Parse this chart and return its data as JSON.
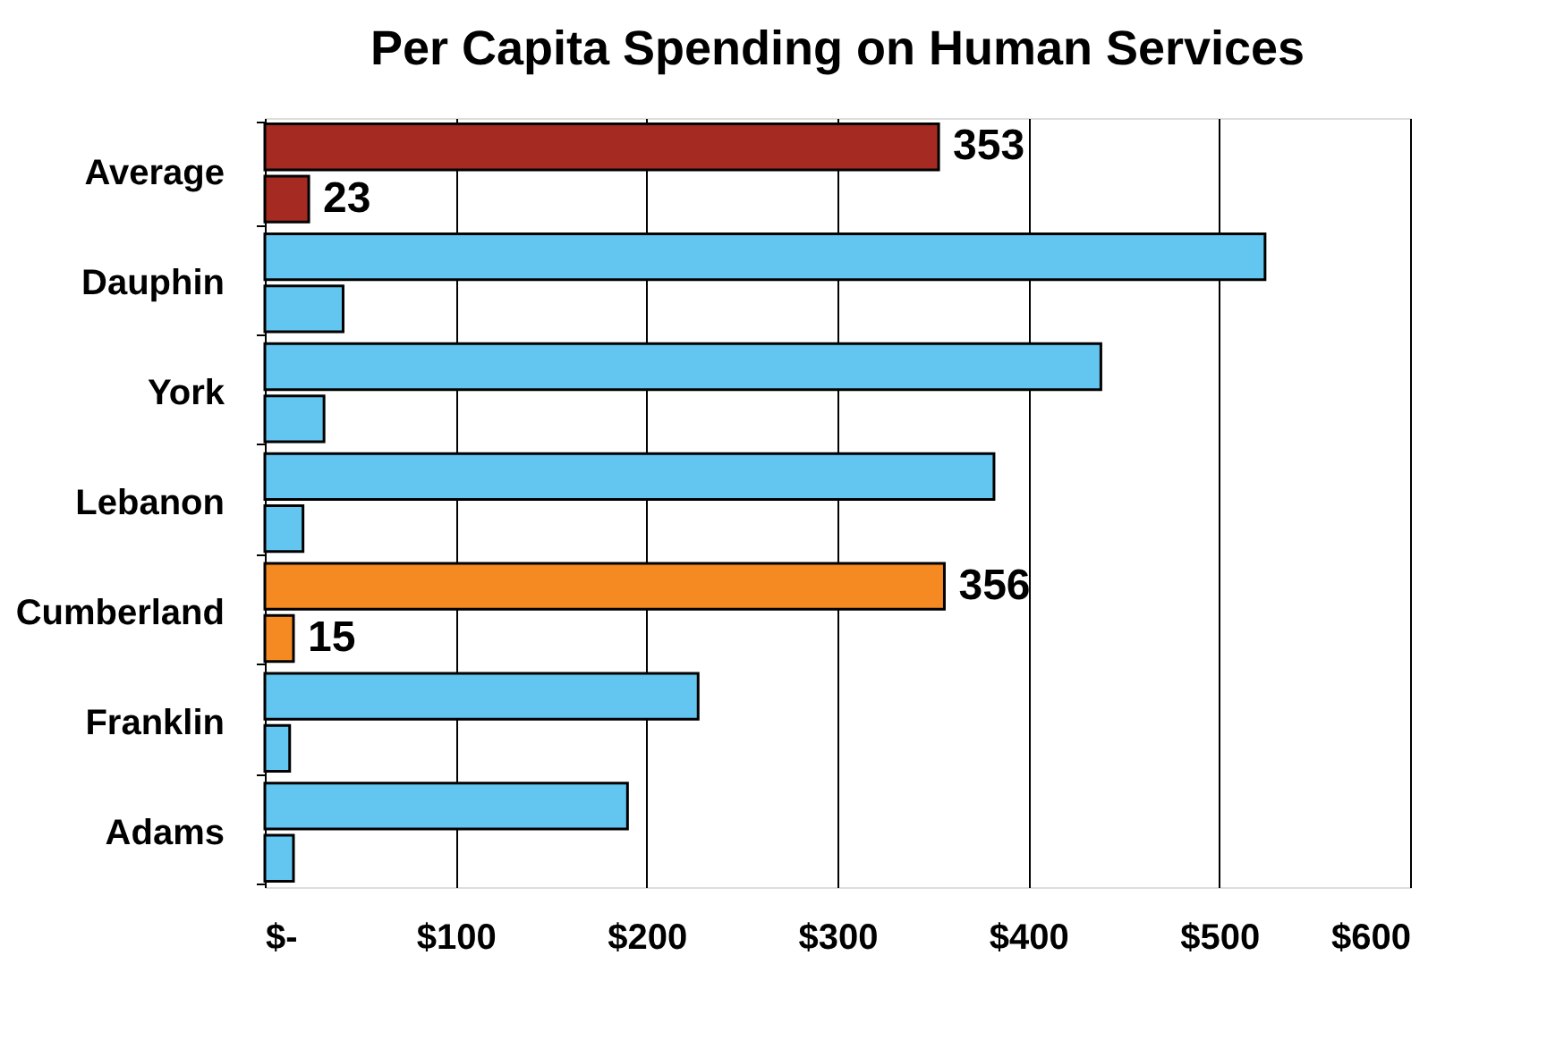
{
  "chart_data": {
    "type": "bar",
    "orientation": "horizontal",
    "title": "Per Capita Spending on Human Services",
    "categories": [
      "Average",
      "Dauphin",
      "York",
      "Lebanon",
      "Cumberland",
      "Franklin",
      "Adams"
    ],
    "series": [
      {
        "colors": [
          "#a52a22",
          "#63c6f0",
          "#63c6f0",
          "#63c6f0",
          "#f58a22",
          "#63c6f0",
          "#63c6f0"
        ],
        "values": [
          353,
          524,
          438,
          382,
          356,
          227,
          190
        ],
        "value_labels": [
          "353",
          null,
          null,
          null,
          "356",
          null,
          null
        ]
      },
      {
        "colors": [
          "#a52a22",
          "#63c6f0",
          "#63c6f0",
          "#63c6f0",
          "#f58a22",
          "#63c6f0",
          "#63c6f0"
        ],
        "values": [
          23,
          41,
          31,
          20,
          15,
          13,
          15
        ],
        "value_labels": [
          "23",
          null,
          null,
          null,
          "15",
          null,
          null
        ]
      }
    ],
    "xlim": [
      0,
      600
    ],
    "xticks": [
      {
        "value": 0,
        "label": "$-"
      },
      {
        "value": 100,
        "label": "$100"
      },
      {
        "value": 200,
        "label": "$200"
      },
      {
        "value": 300,
        "label": "$300"
      },
      {
        "value": 400,
        "label": "$400"
      },
      {
        "value": 500,
        "label": "$500"
      },
      {
        "value": 600,
        "label": "$600"
      }
    ],
    "grid": "x"
  }
}
